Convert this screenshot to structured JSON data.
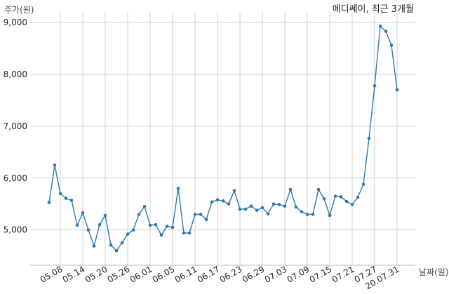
{
  "chart_data": {
    "type": "line",
    "title": "메디쎄이, 최근 3개월",
    "ylabel": "주가(원)",
    "xlabel": "날짜(일)",
    "ylim": [
      4400,
      9150
    ],
    "yticks": [
      5000,
      6000,
      7000,
      8000,
      9000
    ],
    "ytick_labels": [
      "5,000",
      "6,000",
      "7,000",
      "8,000",
      "9,000"
    ],
    "xtick_labels": [
      "05.08",
      "05.14",
      "05.20",
      "05.26",
      "06.01",
      "06.05",
      "06.11",
      "06.17",
      "06.23",
      "06.29",
      "07.03",
      "07.09",
      "07.15",
      "07.21",
      "07.27",
      "20.07.31"
    ],
    "xtick_index": [
      2,
      6,
      10,
      14,
      18,
      22,
      26,
      30,
      34,
      38,
      42,
      46,
      50,
      54,
      58,
      62
    ],
    "grid": true,
    "line_color": "#2b7bb0",
    "series": [
      {
        "values": [
          5530,
          6250,
          5700,
          5610,
          5570,
          5090,
          5330,
          5000,
          4690,
          5100,
          5280,
          4710,
          4600,
          4750,
          4920,
          5000,
          5300,
          5450,
          5090,
          5100,
          4900,
          5070,
          5050,
          5800,
          4940,
          4940,
          5300,
          5300,
          5200,
          5540,
          5580,
          5560,
          5500,
          5760,
          5400,
          5400,
          5460,
          5380,
          5430,
          5310,
          5500,
          5490,
          5460,
          5780,
          5440,
          5350,
          5300,
          5300,
          5780,
          5600,
          5280,
          5650,
          5640,
          5550,
          5490,
          5630,
          5880,
          6770,
          7780,
          8930,
          8830,
          8560,
          7700
        ]
      }
    ]
  }
}
